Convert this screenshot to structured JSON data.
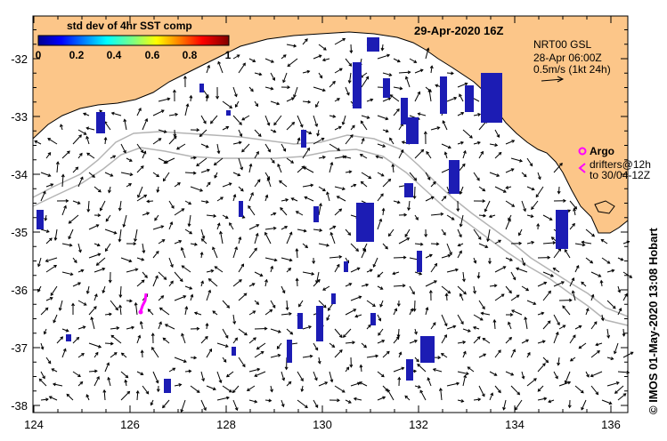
{
  "map": {
    "title": "29-Apr-2020 16Z",
    "colorbar": {
      "title": "std dev of 4hr SST comp",
      "ticks": [
        "0",
        "0.2",
        "0.4",
        "0.6",
        "0.8",
        "1"
      ],
      "min": 0,
      "max": 1
    },
    "model_info": {
      "line1": "NRT00 GSL",
      "line2": "28-Apr 06:00Z",
      "line3": "0.5m/s (1kt 24h)"
    },
    "legend": {
      "argo_label": "Argo",
      "drifters_line1": "drifters@12h",
      "drifters_line2": "to 30/04-12Z"
    },
    "axes": {
      "lon_range": [
        124,
        136.5
      ],
      "lat_range": [
        -38.1,
        -31.4
      ],
      "x_ticks": [
        "124",
        "126",
        "128",
        "130",
        "132",
        "134",
        "136"
      ],
      "y_ticks": [
        "-32",
        "-33",
        "-34",
        "-35",
        "-36",
        "-37",
        "-38"
      ]
    },
    "credit": "© IMOS 01-May-2020 13:08 Hobart",
    "colors": {
      "land": "#fcc689",
      "sea": "#ffffff",
      "contour": "#b4b4b4",
      "coast": "#000000",
      "drifter": "#ff00ff",
      "sst_blue": "#1c1cb4"
    }
  }
}
